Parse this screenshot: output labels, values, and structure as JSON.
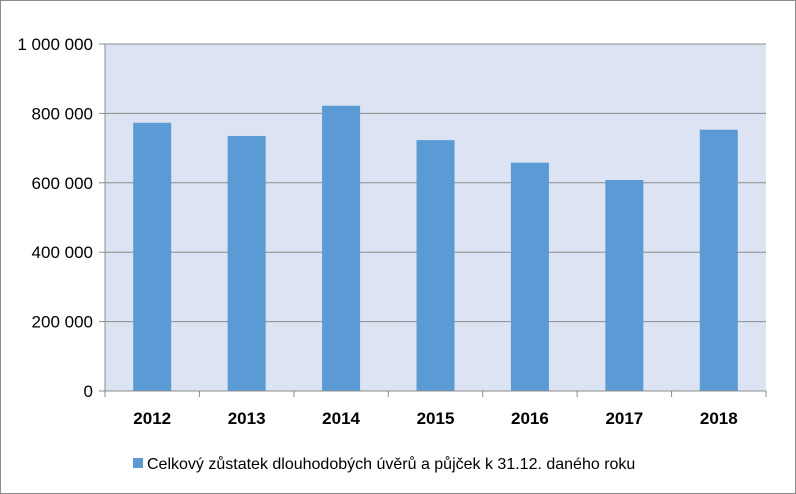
{
  "chart_data": {
    "type": "bar",
    "categories": [
      "2012",
      "2013",
      "2014",
      "2015",
      "2016",
      "2017",
      "2018"
    ],
    "series": [
      {
        "name": "Celkový zůstatek dlouhodobých úvěrů a půjček  k 31.12. daného roku",
        "values": [
          773000,
          735000,
          822000,
          723000,
          658000,
          608000,
          753000
        ],
        "color": "#5b9bd5"
      }
    ],
    "ylim": [
      0,
      1000000
    ],
    "yticks": [
      0,
      200000,
      400000,
      600000,
      800000,
      1000000
    ],
    "ytick_labels": [
      "0",
      "200 000",
      "400 000",
      "600 000",
      "800 000",
      "1 000 000"
    ],
    "title": "",
    "xlabel": "",
    "ylabel": "",
    "grid": true,
    "legend_position": "bottom",
    "plot_background": "#dce3f2",
    "gridline_color": "#8c8c8c"
  }
}
